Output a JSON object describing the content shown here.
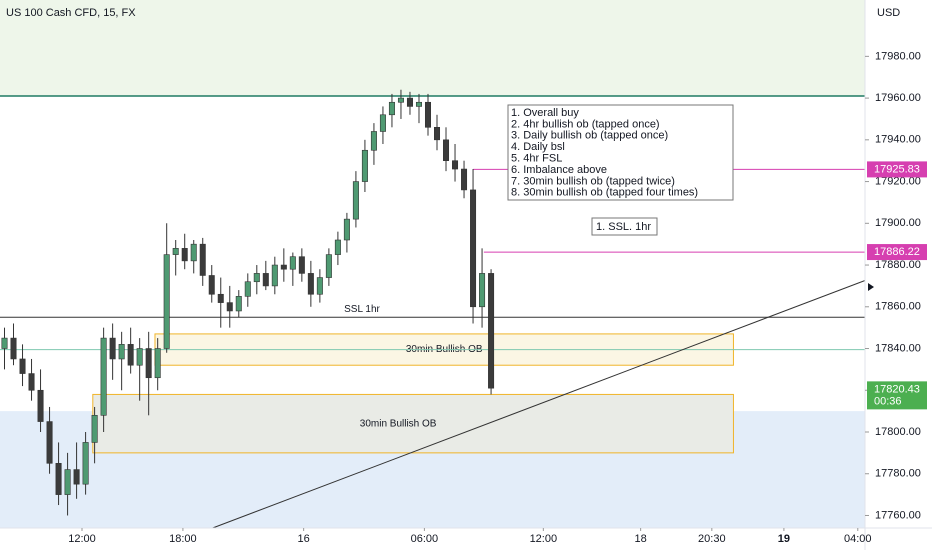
{
  "chart_data": {
    "type": "candlestick",
    "title": "US 100 Cash CFD, 15, FX",
    "currency": "USD",
    "up_color": "#4f9a72",
    "down_color": "#3b3b3b",
    "xlim": [
      0,
      96
    ],
    "ylim": [
      17754,
      18007
    ],
    "grid": false,
    "xticks": [
      {
        "value": 9.1,
        "label": "12:00"
      },
      {
        "value": 20.3,
        "label": "18:00"
      },
      {
        "value": 33.7,
        "label": "16"
      },
      {
        "value": 47.1,
        "label": "06:00"
      },
      {
        "value": 60.3,
        "label": "12:00"
      },
      {
        "value": 71.1,
        "label": "18"
      },
      {
        "value": 79.0,
        "label": "20:30"
      },
      {
        "value": 87.0,
        "label": "19"
      },
      {
        "value": 95.2,
        "label": "04:00"
      }
    ],
    "yticks": [
      {
        "value": 17760,
        "label": "17760.00"
      },
      {
        "value": 17780,
        "label": "17780.00"
      },
      {
        "value": 17800,
        "label": "17800.00"
      },
      {
        "value": 17820,
        "label": "17820.00"
      },
      {
        "value": 17840,
        "label": "17840.00"
      },
      {
        "value": 17860,
        "label": "17860.00"
      },
      {
        "value": 17880,
        "label": "17880.00"
      },
      {
        "value": 17900,
        "label": "17900.00"
      },
      {
        "value": 17920,
        "label": "17920.00"
      },
      {
        "value": 17940,
        "label": "17940.00"
      },
      {
        "value": 17960,
        "label": "17960.00"
      },
      {
        "value": 17980,
        "label": "17980.00"
      }
    ],
    "open": [
      17840,
      17845,
      17835,
      17828,
      17820,
      17805,
      17785,
      17770,
      17782,
      17775,
      17795,
      17808,
      17845,
      17835,
      17842,
      17832,
      17840,
      17826,
      17840,
      17885,
      17888,
      17882,
      17890,
      17875,
      17866,
      17862,
      17858,
      17865,
      17872,
      17876,
      17870,
      17880,
      17878,
      17884,
      17876,
      17866,
      17874,
      17885,
      17892,
      17902,
      17920,
      17935,
      17944,
      17952,
      17958,
      17960,
      17956,
      17958,
      17946,
      17940,
      17930,
      17926,
      17916,
      17860,
      17876
    ],
    "high": [
      17850,
      17852,
      17842,
      17835,
      17830,
      17812,
      17795,
      17790,
      17795,
      17800,
      17812,
      17850,
      17852,
      17848,
      17850,
      17845,
      17848,
      17845,
      17900,
      17892,
      17895,
      17892,
      17893,
      17880,
      17874,
      17870,
      17868,
      17876,
      17880,
      17882,
      17884,
      17888,
      17886,
      17888,
      17882,
      17878,
      17888,
      17896,
      17905,
      17925,
      17940,
      17948,
      17956,
      17962,
      17964,
      17963,
      17962,
      17962,
      17952,
      17946,
      17938,
      17930,
      17926,
      17888,
      17878
    ],
    "low": [
      17830,
      17832,
      17822,
      17815,
      17800,
      17780,
      17765,
      17760,
      17768,
      17770,
      17785,
      17800,
      17825,
      17820,
      17828,
      17815,
      17808,
      17820,
      17838,
      17875,
      17878,
      17876,
      17870,
      17862,
      17850,
      17850,
      17855,
      17860,
      17866,
      17868,
      17866,
      17872,
      17870,
      17872,
      17860,
      17862,
      17870,
      17880,
      17886,
      17898,
      17915,
      17928,
      17938,
      17946,
      17950,
      17952,
      17948,
      17942,
      17935,
      17925,
      17920,
      17912,
      17852,
      17850,
      17818
    ],
    "close": [
      17845,
      17835,
      17828,
      17820,
      17805,
      17785,
      17770,
      17782,
      17775,
      17795,
      17808,
      17845,
      17835,
      17842,
      17832,
      17840,
      17826,
      17840,
      17885,
      17888,
      17882,
      17890,
      17875,
      17866,
      17862,
      17858,
      17865,
      17872,
      17876,
      17870,
      17880,
      17878,
      17884,
      17876,
      17866,
      17874,
      17885,
      17892,
      17902,
      17920,
      17935,
      17944,
      17952,
      17958,
      17960,
      17956,
      17958,
      17946,
      17940,
      17930,
      17926,
      17916,
      17860,
      17876,
      17821
    ],
    "zones": [
      {
        "top": 18007,
        "bottom": 17961,
        "color": "#eef6ea"
      },
      {
        "top": 17810,
        "bottom": 17754,
        "color": "#e3edf9"
      }
    ],
    "levels": [
      {
        "value": 17961,
        "x0": 0,
        "color": "#1e7a63"
      },
      {
        "value": 17855,
        "x0": 0,
        "color": "#333333"
      },
      {
        "value": 17839.5,
        "x0": 0,
        "color": "#7fc8b0"
      },
      {
        "value": 17925.83,
        "x0": 52.5,
        "color": "#d63fb0"
      },
      {
        "value": 17886.22,
        "x0": 53.7,
        "color": "#d63fb0"
      }
    ],
    "level_label": "SSL 1hr",
    "boxes": [
      {
        "x0": 17.2,
        "x1": 81.4,
        "top": 17847,
        "bottom": 17832,
        "label": "30min Bullish OB",
        "fill": "#fbf6e4"
      },
      {
        "x0": 10.3,
        "x1": 81.4,
        "top": 17818,
        "bottom": 17790,
        "label": "30min Bullish OB",
        "fill": "#e9ebe6"
      }
    ],
    "trendline": {
      "x": [
        23.6,
        96
      ],
      "y": [
        17754,
        17872.6
      ]
    },
    "notes": [
      "1. Overall buy",
      "2. 4hr bullish ob (tapped once)",
      "3. Daily bullish ob (tapped once)",
      "4. Daily bsl",
      "5. 4hr FSL",
      "6. Imbalance above",
      "7. 30min bullish ob (tapped twice)",
      "8. 30min bullish ob (tapped four times)"
    ],
    "note_small": "1. SSL. 1hr",
    "price_tags": [
      {
        "value": 17925.83,
        "color": "#d63fb0"
      },
      {
        "value": 17886.22,
        "color": "#d63fb0"
      }
    ],
    "last_price": {
      "value": 17820.43,
      "countdown": "00:36",
      "color": "#4caf50"
    }
  }
}
